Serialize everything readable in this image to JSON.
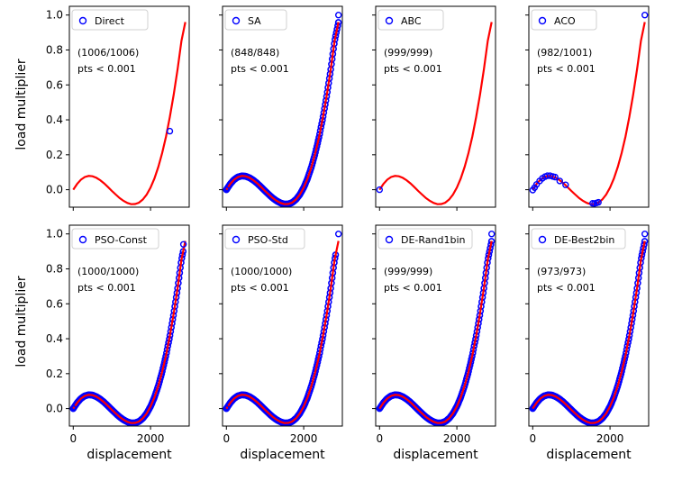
{
  "chart_data": {
    "type": "scatter",
    "shared_axes": {
      "xlabel": "displacement",
      "ylabel": "load multiplier",
      "xlim": [
        -100,
        3000
      ],
      "ylim": [
        -0.1,
        1.05
      ],
      "xticks": [
        0,
        2000
      ],
      "xtick_labels": [
        "0",
        "2000"
      ],
      "yticks": [
        0.0,
        0.2,
        0.4,
        0.6,
        0.8,
        1.0
      ],
      "ytick_labels": [
        "0.0",
        "0.2",
        "0.4",
        "0.6",
        "0.8",
        "1.0"
      ],
      "reference_curve_color": "#ff0000",
      "marker_color": "#0000ff"
    },
    "reference_curve": {
      "x": [
        0,
        100,
        200,
        300,
        400,
        500,
        600,
        700,
        800,
        900,
        1000,
        1100,
        1200,
        1300,
        1400,
        1500,
        1600,
        1700,
        1800,
        1900,
        2000,
        2100,
        2200,
        2300,
        2400,
        2500,
        2600,
        2700,
        2800,
        2900
      ],
      "y": [
        0.0,
        0.033,
        0.058,
        0.073,
        0.079,
        0.077,
        0.068,
        0.054,
        0.036,
        0.015,
        -0.007,
        -0.028,
        -0.048,
        -0.064,
        -0.076,
        -0.083,
        -0.082,
        -0.074,
        -0.056,
        -0.028,
        0.012,
        0.064,
        0.13,
        0.21,
        0.305,
        0.416,
        0.544,
        0.689,
        0.852,
        0.96
      ]
    },
    "panels": [
      {
        "legend": "Direct",
        "count_text": "(1006/1006)",
        "pts_text": "pts < 0.001",
        "points": [
          {
            "x": 2500,
            "y": 0.335
          }
        ],
        "dense_range": null
      },
      {
        "legend": "SA",
        "count_text": "(848/848)",
        "pts_text": "pts < 0.001",
        "points": [
          {
            "x": 0,
            "y": 0.0
          },
          {
            "x": 2900,
            "y": 1.0
          }
        ],
        "dense_range": [
          0,
          2900
        ]
      },
      {
        "legend": "ABC",
        "count_text": "(999/999)",
        "pts_text": "pts < 0.001",
        "points": [
          {
            "x": 0,
            "y": 0.0
          }
        ],
        "dense_range": null
      },
      {
        "legend": "ACO",
        "count_text": "(982/1001)",
        "pts_text": "pts < 0.001",
        "points": [
          {
            "x": 0,
            "y": -0.002
          },
          {
            "x": 50,
            "y": 0.012
          },
          {
            "x": 100,
            "y": 0.03
          },
          {
            "x": 180,
            "y": 0.05
          },
          {
            "x": 250,
            "y": 0.065
          },
          {
            "x": 320,
            "y": 0.075
          },
          {
            "x": 380,
            "y": 0.08
          },
          {
            "x": 450,
            "y": 0.08
          },
          {
            "x": 520,
            "y": 0.076
          },
          {
            "x": 580,
            "y": 0.072
          },
          {
            "x": 700,
            "y": 0.05
          },
          {
            "x": 850,
            "y": 0.028
          },
          {
            "x": 1550,
            "y": -0.078
          },
          {
            "x": 1600,
            "y": -0.079
          },
          {
            "x": 1650,
            "y": -0.076
          },
          {
            "x": 1700,
            "y": -0.072
          },
          {
            "x": 2900,
            "y": 1.0
          }
        ],
        "dense_range": null
      },
      {
        "legend": "PSO-Const",
        "count_text": "(1000/1000)",
        "pts_text": "pts < 0.001",
        "points": [
          {
            "x": 0,
            "y": 0.0
          },
          {
            "x": 2850,
            "y": 0.94
          }
        ],
        "dense_range": [
          0,
          2850
        ]
      },
      {
        "legend": "PSO-Std",
        "count_text": "(1000/1000)",
        "pts_text": "pts < 0.001",
        "points": [
          {
            "x": 0,
            "y": 0.0
          },
          {
            "x": 2900,
            "y": 1.0
          }
        ],
        "dense_range": [
          0,
          2830
        ]
      },
      {
        "legend": "DE-Rand1bin",
        "count_text": "(999/999)",
        "pts_text": "pts < 0.001",
        "points": [
          {
            "x": 2900,
            "y": 1.0
          }
        ],
        "dense_range": [
          0,
          2900
        ]
      },
      {
        "legend": "DE-Best2bin",
        "count_text": "(973/973)",
        "pts_text": "pts < 0.001",
        "points": [
          {
            "x": 2900,
            "y": 1.0
          }
        ],
        "dense_range": [
          0,
          2900
        ]
      }
    ]
  }
}
